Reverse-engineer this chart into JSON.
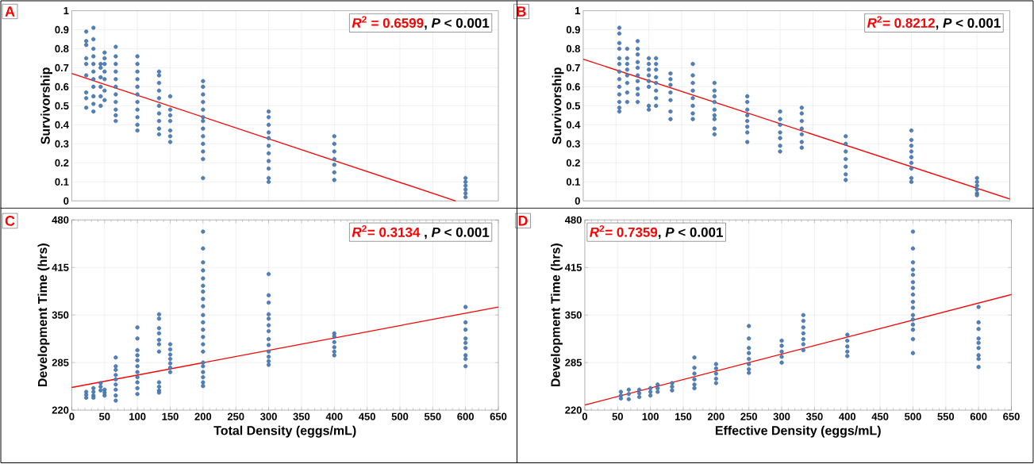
{
  "chart_data": [
    {
      "type": "scatter",
      "ylabel": "Survivorship",
      "annotations": [
        "A",
        "*R*$^{2}$ = 0.6599",
        ", *P* < 0.001"
      ],
      "xlim": [
        0,
        650
      ],
      "xticks": [
        0,
        50,
        100,
        150,
        200,
        250,
        300,
        350,
        400,
        450,
        500,
        550,
        600,
        650
      ],
      "ylim": [
        0,
        1
      ],
      "yticks": [
        0,
        0.1,
        0.2,
        0.3,
        0.4,
        0.5,
        0.6,
        0.7,
        0.8,
        0.9,
        1
      ],
      "grid": true,
      "tick_labels": "y",
      "marker": "circle",
      "series": [
        {
          "type": "scatter",
          "color": "#4f81bd",
          "x": [
            22,
            22,
            22,
            22,
            22,
            22,
            22,
            22,
            22,
            33,
            33,
            33,
            33,
            33,
            33,
            33,
            33,
            33,
            33,
            33,
            44,
            44,
            44,
            44,
            44,
            44,
            50,
            50,
            50,
            50,
            50,
            50,
            50,
            67,
            67,
            67,
            67,
            67,
            67,
            67,
            67,
            67,
            67,
            67,
            100,
            100,
            100,
            100,
            100,
            100,
            100,
            100,
            100,
            100,
            100,
            133,
            133,
            133,
            133,
            133,
            133,
            133,
            133,
            133,
            133,
            150,
            150,
            150,
            150,
            150,
            150,
            150,
            200,
            200,
            200,
            200,
            200,
            200,
            200,
            200,
            200,
            200,
            200,
            200,
            200,
            300,
            300,
            300,
            300,
            300,
            300,
            300,
            300,
            300,
            300,
            300,
            400,
            400,
            400,
            400,
            400,
            400,
            400,
            600,
            600,
            600,
            600,
            600,
            600
          ],
          "values": [
            0.89,
            0.84,
            0.82,
            0.75,
            0.72,
            0.66,
            0.57,
            0.54,
            0.49,
            0.91,
            0.85,
            0.8,
            0.76,
            0.72,
            0.68,
            0.64,
            0.6,
            0.55,
            0.51,
            0.47,
            0.72,
            0.7,
            0.65,
            0.6,
            0.55,
            0.5,
            0.78,
            0.75,
            0.72,
            0.68,
            0.64,
            0.58,
            0.53,
            0.81,
            0.76,
            0.72,
            0.68,
            0.64,
            0.6,
            0.56,
            0.52,
            0.48,
            0.45,
            0.42,
            0.76,
            0.72,
            0.68,
            0.64,
            0.6,
            0.56,
            0.52,
            0.48,
            0.44,
            0.4,
            0.37,
            0.68,
            0.66,
            0.62,
            0.58,
            0.54,
            0.5,
            0.46,
            0.42,
            0.38,
            0.35,
            0.55,
            0.48,
            0.45,
            0.42,
            0.37,
            0.34,
            0.31,
            0.63,
            0.6,
            0.56,
            0.52,
            0.48,
            0.44,
            0.42,
            0.38,
            0.34,
            0.3,
            0.26,
            0.22,
            0.12,
            0.47,
            0.44,
            0.4,
            0.36,
            0.33,
            0.29,
            0.25,
            0.21,
            0.17,
            0.12,
            0.1,
            0.34,
            0.3,
            0.26,
            0.22,
            0.19,
            0.15,
            0.11,
            0.12,
            0.1,
            0.08,
            0.06,
            0.04,
            0.02
          ]
        },
        {
          "type": "line",
          "color": "#ff0000",
          "marker": "none",
          "x": [
            0,
            585
          ],
          "values": [
            0.67,
            0
          ]
        }
      ]
    },
    {
      "type": "scatter",
      "ylabel": "Survivorship",
      "annotations": [
        "B",
        "*R*$^{2}$= 0.8212",
        ", *P* < 0.001"
      ],
      "xlim": [
        0,
        650
      ],
      "xticks": [
        0,
        50,
        100,
        150,
        200,
        250,
        300,
        350,
        400,
        450,
        500,
        550,
        600,
        650
      ],
      "ylim": [
        0,
        1
      ],
      "yticks": [
        0,
        0.1,
        0.2,
        0.3,
        0.4,
        0.5,
        0.6,
        0.7,
        0.8,
        0.9,
        1
      ],
      "grid": true,
      "tick_labels": "y",
      "marker": "circle",
      "series": [
        {
          "type": "scatter",
          "color": "#4f81bd",
          "x": [
            55,
            55,
            55,
            55,
            55,
            55,
            55,
            55,
            55,
            55,
            55,
            55,
            55,
            67,
            67,
            67,
            67,
            67,
            67,
            67,
            67,
            83,
            83,
            83,
            83,
            83,
            83,
            83,
            83,
            83,
            83,
            100,
            100,
            100,
            100,
            100,
            100,
            100,
            100,
            111,
            111,
            111,
            111,
            111,
            111,
            111,
            111,
            133,
            133,
            133,
            133,
            133,
            133,
            133,
            167,
            167,
            167,
            167,
            167,
            167,
            167,
            167,
            200,
            200,
            200,
            200,
            200,
            200,
            200,
            200,
            200,
            250,
            250,
            250,
            250,
            250,
            250,
            250,
            250,
            300,
            300,
            300,
            300,
            300,
            300,
            300,
            333,
            333,
            333,
            333,
            333,
            333,
            333,
            400,
            400,
            400,
            400,
            400,
            400,
            400,
            500,
            500,
            500,
            500,
            500,
            500,
            500,
            500,
            500,
            600,
            600,
            600,
            600,
            600,
            600
          ],
          "values": [
            0.91,
            0.88,
            0.83,
            0.8,
            0.75,
            0.72,
            0.68,
            0.64,
            0.6,
            0.56,
            0.52,
            0.49,
            0.47,
            0.8,
            0.75,
            0.72,
            0.69,
            0.66,
            0.62,
            0.57,
            0.52,
            0.84,
            0.8,
            0.77,
            0.73,
            0.7,
            0.66,
            0.63,
            0.59,
            0.56,
            0.52,
            0.75,
            0.72,
            0.69,
            0.66,
            0.63,
            0.6,
            0.5,
            0.48,
            0.75,
            0.72,
            0.69,
            0.65,
            0.62,
            0.58,
            0.54,
            0.5,
            0.67,
            0.64,
            0.61,
            0.57,
            0.53,
            0.47,
            0.43,
            0.72,
            0.66,
            0.62,
            0.58,
            0.54,
            0.5,
            0.46,
            0.43,
            0.62,
            0.58,
            0.55,
            0.52,
            0.48,
            0.45,
            0.43,
            0.38,
            0.35,
            0.55,
            0.52,
            0.48,
            0.45,
            0.42,
            0.39,
            0.36,
            0.31,
            0.47,
            0.43,
            0.4,
            0.36,
            0.33,
            0.29,
            0.26,
            0.49,
            0.46,
            0.42,
            0.38,
            0.35,
            0.31,
            0.28,
            0.34,
            0.3,
            0.26,
            0.22,
            0.18,
            0.14,
            0.11,
            0.37,
            0.32,
            0.29,
            0.26,
            0.23,
            0.2,
            0.17,
            0.12,
            0.1,
            0.12,
            0.1,
            0.08,
            0.06,
            0.04,
            0.03
          ]
        },
        {
          "type": "line",
          "color": "#ff0000",
          "marker": "none",
          "x": [
            0,
            650
          ],
          "values": [
            0.745,
            0.01
          ]
        }
      ]
    },
    {
      "type": "scatter",
      "xlabel": "Total Density (eggs/mL)",
      "ylabel": "Development Time (hrs)",
      "annotations": [
        "C",
        "*R*$^{2}$= 0.3134",
        " , *P* < 0.001"
      ],
      "xlim": [
        0,
        650
      ],
      "xticks": [
        0,
        50,
        100,
        150,
        200,
        250,
        300,
        350,
        400,
        450,
        500,
        550,
        600,
        650
      ],
      "ylim": [
        220,
        480
      ],
      "yticks": [
        220,
        285,
        350,
        415,
        480
      ],
      "grid": true,
      "marker": "circle",
      "series": [
        {
          "type": "scatter",
          "color": "#4f81bd",
          "x": [
            22,
            22,
            22,
            33,
            33,
            33,
            33,
            44,
            44,
            44,
            50,
            50,
            50,
            67,
            67,
            67,
            67,
            67,
            67,
            67,
            67,
            67,
            100,
            100,
            100,
            100,
            100,
            100,
            100,
            100,
            100,
            100,
            100,
            133,
            133,
            133,
            133,
            133,
            133,
            133,
            133,
            133,
            133,
            133,
            150,
            150,
            150,
            150,
            150,
            150,
            150,
            200,
            200,
            200,
            200,
            200,
            200,
            200,
            200,
            200,
            200,
            200,
            200,
            200,
            200,
            200,
            200,
            200,
            200,
            200,
            200,
            200,
            300,
            300,
            300,
            300,
            300,
            300,
            300,
            300,
            300,
            300,
            300,
            300,
            300,
            400,
            400,
            400,
            400,
            400,
            400,
            600,
            600,
            600,
            600,
            600,
            600,
            600,
            600,
            600
          ],
          "values": [
            245,
            241,
            237,
            250,
            245,
            240,
            237,
            257,
            252,
            247,
            248,
            244,
            240,
            292,
            280,
            275,
            268,
            262,
            255,
            248,
            240,
            233,
            333,
            318,
            302,
            295,
            288,
            280,
            272,
            265,
            258,
            250,
            242,
            351,
            345,
            332,
            325,
            316,
            310,
            300,
            258,
            252,
            247,
            244,
            310,
            303,
            296,
            290,
            284,
            278,
            272,
            464,
            441,
            422,
            411,
            400,
            390,
            382,
            372,
            362,
            350,
            340,
            330,
            320,
            310,
            300,
            285,
            280,
            272,
            265,
            258,
            253,
            406,
            377,
            367,
            351,
            345,
            336,
            328,
            317,
            309,
            300,
            293,
            287,
            282,
            325,
            321,
            313,
            306,
            300,
            295,
            361,
            340,
            330,
            318,
            312,
            305,
            295,
            290,
            280
          ]
        },
        {
          "type": "line",
          "color": "#ff0000",
          "marker": "none",
          "x": [
            0,
            650
          ],
          "values": [
            251,
            361
          ]
        }
      ]
    },
    {
      "type": "scatter",
      "xlabel": "Effective Density (eggs/mL)",
      "ylabel": "Development Time (hrs)",
      "annotations": [
        "D",
        "*R*$^{2}$= 0.7359",
        ", *P* < 0.001"
      ],
      "xlim": [
        0,
        650
      ],
      "xticks": [
        0,
        50,
        100,
        150,
        200,
        250,
        300,
        350,
        400,
        450,
        500,
        550,
        600,
        650
      ],
      "ylim": [
        220,
        480
      ],
      "yticks": [
        220,
        285,
        350,
        415,
        480
      ],
      "grid": true,
      "marker": "circle",
      "series": [
        {
          "type": "scatter",
          "color": "#4f81bd",
          "x": [
            55,
            55,
            55,
            67,
            67,
            67,
            83,
            83,
            83,
            100,
            100,
            100,
            111,
            111,
            111,
            133,
            133,
            133,
            167,
            167,
            167,
            167,
            167,
            167,
            200,
            200,
            200,
            200,
            200,
            250,
            250,
            250,
            250,
            250,
            250,
            250,
            250,
            300,
            300,
            300,
            300,
            300,
            333,
            333,
            333,
            333,
            333,
            333,
            333,
            400,
            400,
            400,
            400,
            400,
            500,
            500,
            500,
            500,
            500,
            500,
            500,
            500,
            500,
            500,
            500,
            500,
            500,
            500,
            500,
            500,
            600,
            600,
            600,
            600,
            600,
            600,
            600,
            600,
            600
          ],
          "values": [
            245,
            240,
            236,
            248,
            242,
            235,
            248,
            243,
            238,
            250,
            245,
            240,
            255,
            250,
            245,
            257,
            252,
            247,
            292,
            278,
            270,
            262,
            255,
            250,
            283,
            277,
            270,
            263,
            257,
            335,
            318,
            305,
            298,
            290,
            283,
            276,
            271,
            315,
            308,
            300,
            293,
            285,
            350,
            342,
            333,
            325,
            317,
            310,
            302,
            323,
            315,
            307,
            300,
            294,
            464,
            441,
            422,
            412,
            405,
            395,
            387,
            378,
            368,
            360,
            350,
            344,
            337,
            330,
            317,
            298,
            361,
            340,
            331,
            318,
            312,
            305,
            295,
            290,
            279
          ]
        },
        {
          "type": "line",
          "color": "#ff0000",
          "marker": "none",
          "x": [
            0,
            650
          ],
          "values": [
            227,
            378
          ]
        }
      ]
    }
  ]
}
